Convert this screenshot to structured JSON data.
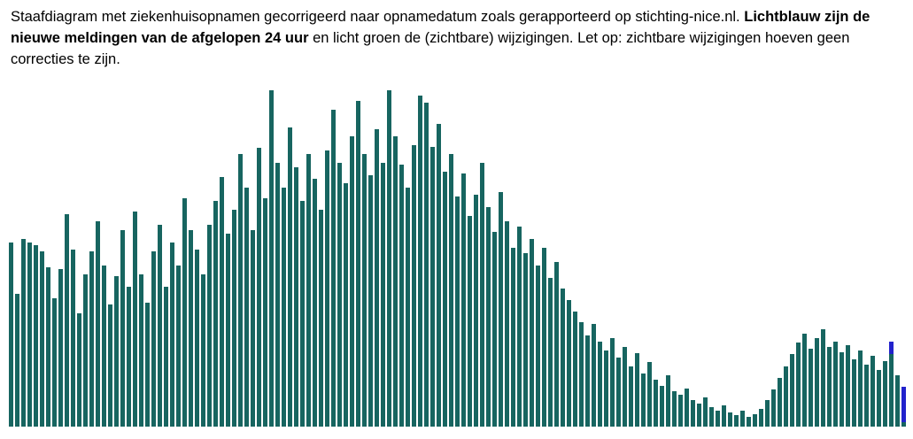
{
  "description": {
    "part1": "Staafdiagram met ziekenhuisopnamen gecorrigeerd naar opnamedatum zoals gerapporteerd op stichting-nice.nl. ",
    "part2_bold": "Lichtblauw zijn de nieuwe meldingen van de afgelopen 24 uur",
    "part3": " en licht groen de (zichtbare) wijzigingen. Let op: zichtbare wijzigingen hoeven geen correcties te zijn."
  },
  "chart_data": {
    "type": "bar",
    "title": "",
    "xlabel": "",
    "ylabel": "",
    "axes_visible": false,
    "grid": false,
    "legend": "none",
    "ylim": [
      0,
      382
    ],
    "unit": "relative-height-px (no axis labels visible in source)",
    "colors": {
      "admissions_bar": "#176560",
      "new_last24h": "#2222cc",
      "visible_changes": "#90ee90",
      "background": "#ffffff"
    },
    "values": [
      208,
      150,
      212,
      208,
      205,
      198,
      180,
      145,
      178,
      240,
      200,
      128,
      172,
      198,
      232,
      182,
      138,
      170,
      222,
      158,
      243,
      172,
      140,
      198,
      228,
      158,
      208,
      182,
      258,
      222,
      200,
      172,
      228,
      255,
      282,
      218,
      245,
      308,
      270,
      222,
      315,
      258,
      380,
      298,
      270,
      338,
      293,
      255,
      308,
      280,
      245,
      312,
      358,
      298,
      275,
      328,
      368,
      308,
      284,
      336,
      298,
      380,
      328,
      296,
      270,
      318,
      374,
      366,
      316,
      342,
      288,
      308,
      260,
      286,
      238,
      262,
      298,
      248,
      220,
      265,
      232,
      202,
      226,
      196,
      212,
      182,
      202,
      168,
      186,
      156,
      143,
      130,
      118,
      103,
      116,
      96,
      86,
      100,
      78,
      90,
      68,
      83,
      60,
      73,
      53,
      46,
      58,
      40,
      36,
      43,
      30,
      26,
      33,
      22,
      18,
      24,
      16,
      13,
      18,
      11,
      14,
      20,
      30,
      42,
      55,
      68,
      82,
      95,
      105,
      88,
      100,
      110,
      90,
      96,
      84,
      92,
      76,
      86,
      70,
      80,
      64,
      74,
      96,
      58,
      45
    ],
    "new_last24h_values": [
      0,
      0,
      0,
      0,
      0,
      0,
      0,
      0,
      0,
      0,
      0,
      0,
      0,
      0,
      0,
      0,
      0,
      0,
      0,
      0,
      0,
      0,
      0,
      0,
      0,
      0,
      0,
      0,
      0,
      0,
      0,
      0,
      0,
      0,
      0,
      0,
      0,
      0,
      0,
      0,
      0,
      0,
      0,
      0,
      0,
      0,
      0,
      0,
      0,
      0,
      0,
      0,
      0,
      0,
      0,
      0,
      0,
      0,
      0,
      0,
      0,
      0,
      0,
      0,
      0,
      0,
      0,
      0,
      0,
      0,
      0,
      0,
      0,
      0,
      0,
      0,
      0,
      0,
      0,
      0,
      0,
      0,
      0,
      0,
      0,
      0,
      0,
      0,
      0,
      0,
      0,
      0,
      0,
      0,
      0,
      0,
      0,
      0,
      0,
      0,
      0,
      0,
      0,
      0,
      0,
      0,
      0,
      0,
      0,
      0,
      0,
      0,
      0,
      0,
      0,
      0,
      0,
      0,
      0,
      0,
      0,
      0,
      0,
      0,
      0,
      0,
      0,
      0,
      0,
      0,
      0,
      0,
      0,
      0,
      0,
      0,
      0,
      0,
      0,
      0,
      0,
      0,
      14,
      0,
      40
    ]
  }
}
